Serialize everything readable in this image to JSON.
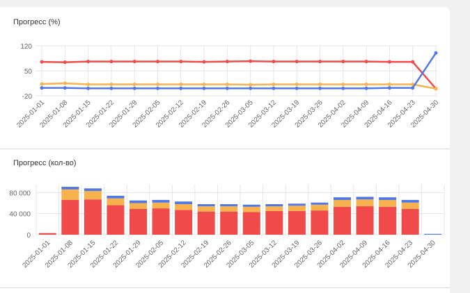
{
  "charts": {
    "percent_title": "Прогресс (%)",
    "count_title": "Прогресс (кол-во)"
  },
  "colors": {
    "red": "#f04a4a",
    "orange": "#f7b24e",
    "blue": "#5078e6",
    "grid": "#e6e6e6"
  },
  "chart_data": [
    {
      "type": "line",
      "title": "Прогресс (%)",
      "x": [
        "2025-01-01",
        "2025-01-08",
        "2025-01-15",
        "2025-01-22",
        "2025-01-29",
        "2025-02-05",
        "2025-02-12",
        "2025-02-19",
        "2025-02-26",
        "2025-03-05",
        "2025-03-12",
        "2025-03-19",
        "2025-03-26",
        "2025-04-02",
        "2025-04-09",
        "2025-04-16",
        "2025-04-23",
        "2025-04-30"
      ],
      "yticks": [
        "120",
        "50",
        "-20"
      ],
      "ylim": [
        -20,
        120
      ],
      "series": [
        {
          "color": "red",
          "values": [
            75,
            74,
            76,
            76,
            76,
            76,
            76,
            75,
            76,
            77,
            76,
            76,
            76,
            76,
            76,
            75,
            75,
            0
          ]
        },
        {
          "color": "orange",
          "values": [
            13,
            15,
            12,
            12,
            12,
            12,
            12,
            12,
            12,
            11,
            12,
            12,
            12,
            12,
            12,
            12,
            12,
            0
          ]
        },
        {
          "color": "blue",
          "values": [
            2,
            2,
            1,
            1,
            1,
            1,
            1,
            1,
            1,
            1,
            1,
            1,
            1,
            1,
            1,
            2,
            2,
            100
          ]
        }
      ],
      "grid": true
    },
    {
      "type": "bar",
      "stacked": true,
      "title": "Прогресс (кол-во)",
      "categories": [
        "2025-01-01",
        "2025-01-08",
        "2025-01-15",
        "2025-01-22",
        "2025-01-29",
        "2025-02-05",
        "2025-02-12",
        "2025-02-19",
        "2025-02-26",
        "2025-03-05",
        "2025-03-12",
        "2025-03-19",
        "2025-03-26",
        "2025-04-02",
        "2025-04-09",
        "2025-04-16",
        "2025-04-23",
        "2025-04-30"
      ],
      "yticks": [
        "80 000",
        "40 000",
        "0"
      ],
      "ylim": [
        0,
        95000
      ],
      "series": [
        {
          "color": "red",
          "values": [
            3000,
            66000,
            67000,
            56000,
            49000,
            50000,
            47000,
            44000,
            44000,
            43000,
            45000,
            45000,
            46000,
            53000,
            54000,
            53000,
            49000,
            0
          ]
        },
        {
          "color": "orange",
          "values": [
            0,
            20000,
            16000,
            13000,
            11000,
            11000,
            11000,
            10000,
            10000,
            10000,
            9000,
            10000,
            11000,
            13000,
            13000,
            13000,
            12000,
            0
          ]
        },
        {
          "color": "blue",
          "values": [
            0,
            5000,
            5000,
            5000,
            5000,
            5000,
            5000,
            4000,
            4000,
            4000,
            4000,
            4000,
            4000,
            5000,
            5000,
            5000,
            5000,
            1500
          ]
        }
      ],
      "grid": true
    }
  ]
}
